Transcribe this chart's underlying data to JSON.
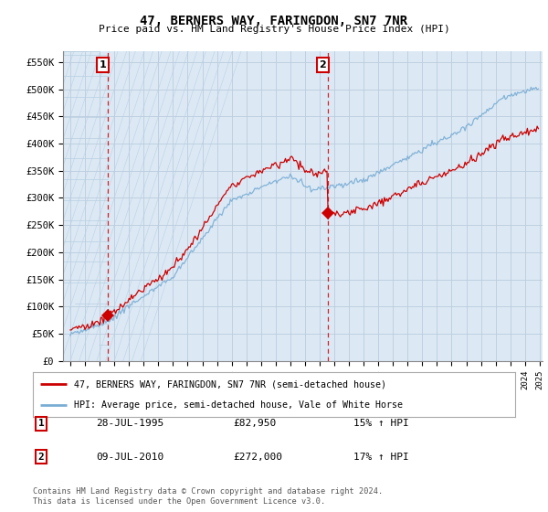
{
  "title": "47, BERNERS WAY, FARINGDON, SN7 7NR",
  "subtitle": "Price paid vs. HM Land Registry's House Price Index (HPI)",
  "ylabel_ticks": [
    "£0",
    "£50K",
    "£100K",
    "£150K",
    "£200K",
    "£250K",
    "£300K",
    "£350K",
    "£400K",
    "£450K",
    "£500K",
    "£550K"
  ],
  "ytick_values": [
    0,
    50000,
    100000,
    150000,
    200000,
    250000,
    300000,
    350000,
    400000,
    450000,
    500000,
    550000
  ],
  "ylim": [
    0,
    570000
  ],
  "sale1_year": 1995,
  "sale1_month": 7,
  "sale1_price": 82950,
  "sale2_year": 2010,
  "sale2_month": 7,
  "sale2_price": 272000,
  "hpi_color": "#7aadd4",
  "price_color": "#cc0000",
  "annotation_color": "#cc0000",
  "grid_color": "#bbccdd",
  "bg_color": "#dce9f5",
  "hatch_color": "#c8d8e8",
  "legend_label1": "47, BERNERS WAY, FARINGDON, SN7 7NR (semi-detached house)",
  "legend_label2": "HPI: Average price, semi-detached house, Vale of White Horse",
  "table_row1": [
    "1",
    "28-JUL-1995",
    "£82,950",
    "15% ↑ HPI"
  ],
  "table_row2": [
    "2",
    "09-JUL-2010",
    "£272,000",
    "17% ↑ HPI"
  ],
  "footnote": "Contains HM Land Registry data © Crown copyright and database right 2024.\nThis data is licensed under the Open Government Licence v3.0.",
  "xmin": 1993,
  "xmax": 2025,
  "noise_scale_hpi": 2500,
  "noise_scale_price": 3500
}
